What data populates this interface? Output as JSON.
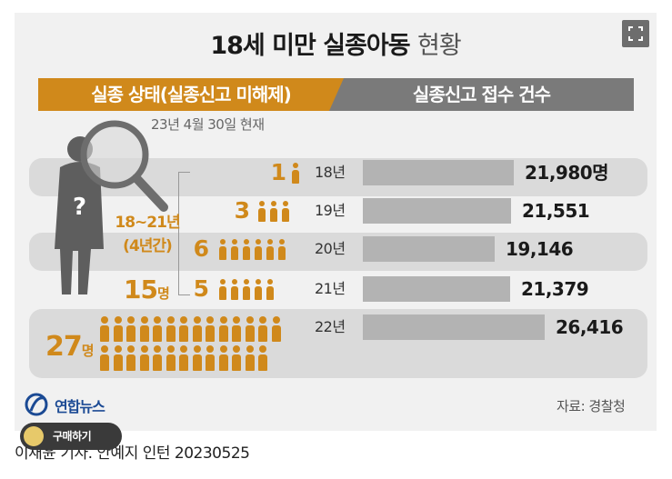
{
  "title": {
    "bold": "18세 미만 실종아동",
    "light": "현황"
  },
  "left_header": "실종 상태(실종신고 미해제)",
  "right_header": "실종신고 접수 건수",
  "as_of": "23년 4월 30일 현재",
  "bracket_label_line1": "18~21년",
  "bracket_label_line2": "(4년간)",
  "bracket_total_num": "15",
  "bracket_total_unit": "명",
  "total_num": "27",
  "total_unit": "명",
  "source": "자료: 경찰청",
  "logo_text": "연합뉴스",
  "buy_label": "구매하기",
  "credit": "이재윤 기자. 안예지 인턴  20230525",
  "colors": {
    "accent": "#d0891b",
    "bar": "#b3b3b3",
    "header_right": "#7a7a7a",
    "band": "#dadada"
  },
  "chart_data": {
    "type": "bar",
    "title": "18세 미만 실종아동 현황",
    "categories": [
      "18년",
      "19년",
      "20년",
      "21년",
      "22년"
    ],
    "series": [
      {
        "name": "실종신고 접수 건수",
        "values": [
          21980,
          21551,
          19146,
          21379,
          26416
        ],
        "labels": [
          "21,980명",
          "21,551",
          "19,146",
          "21,379",
          "26,416"
        ]
      },
      {
        "name": "실종 상태(실종신고 미해제)",
        "values": [
          1,
          3,
          6,
          5,
          27
        ]
      }
    ]
  }
}
